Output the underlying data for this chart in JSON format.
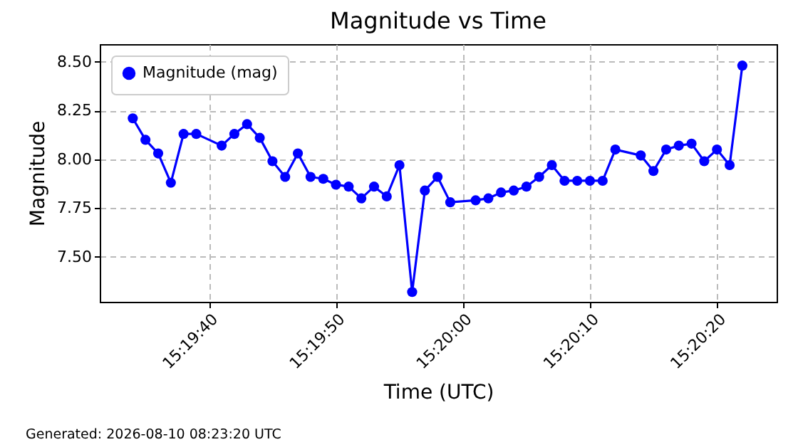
{
  "chart_data": {
    "type": "line",
    "title": "Magnitude vs Time",
    "xlabel": "Time (UTC)",
    "ylabel": "Magnitude",
    "annotations": [
      "Generated: 2026-08-10 08:23:20 UTC"
    ],
    "x": [
      "2026-08-10T15:19:34",
      "2026-08-10T15:19:35",
      "2026-08-10T15:19:36",
      "2026-08-10T15:19:37",
      "2026-08-10T15:19:38",
      "2026-08-10T15:19:39",
      "2026-08-10T15:19:41",
      "2026-08-10T15:19:42",
      "2026-08-10T15:19:43",
      "2026-08-10T15:19:44",
      "2026-08-10T15:19:45",
      "2026-08-10T15:19:46",
      "2026-08-10T15:19:47",
      "2026-08-10T15:19:48",
      "2026-08-10T15:19:49",
      "2026-08-10T15:19:50",
      "2026-08-10T15:19:51",
      "2026-08-10T15:19:52",
      "2026-08-10T15:19:53",
      "2026-08-10T15:19:54",
      "2026-08-10T15:19:55",
      "2026-08-10T15:19:56",
      "2026-08-10T15:19:57",
      "2026-08-10T15:19:58",
      "2026-08-10T15:19:59",
      "2026-08-10T15:20:01",
      "2026-08-10T15:20:02",
      "2026-08-10T15:20:03",
      "2026-08-10T15:20:04",
      "2026-08-10T15:20:05",
      "2026-08-10T15:20:06",
      "2026-08-10T15:20:07",
      "2026-08-10T15:20:08",
      "2026-08-10T15:20:09",
      "2026-08-10T15:20:10",
      "2026-08-10T15:20:11",
      "2026-08-10T15:20:12",
      "2026-08-10T15:20:14",
      "2026-08-10T15:20:15",
      "2026-08-10T15:20:16",
      "2026-08-10T15:20:17",
      "2026-08-10T15:20:18",
      "2026-08-10T15:20:19",
      "2026-08-10T15:20:20",
      "2026-08-10T15:20:21",
      "2026-08-10T15:20:22"
    ],
    "series": [
      {
        "name": "Magnitude (mag)",
        "color": "#0000ff",
        "values": [
          8.21,
          8.1,
          8.03,
          7.88,
          8.13,
          8.13,
          8.07,
          8.13,
          8.18,
          8.11,
          7.99,
          7.91,
          8.03,
          7.91,
          7.9,
          7.87,
          7.86,
          7.8,
          7.86,
          7.81,
          7.97,
          7.32,
          7.84,
          7.91,
          7.78,
          7.79,
          7.8,
          7.83,
          7.84,
          7.86,
          7.91,
          7.97,
          7.89,
          7.89,
          7.89,
          7.89,
          8.05,
          8.02,
          7.94,
          8.05,
          8.07,
          8.08,
          7.99,
          8.05,
          7.97,
          8.48
        ]
      }
    ],
    "xlim": [
      "2026-08-10T15:19:31.4",
      "2026-08-10T15:20:24.7"
    ],
    "xticks": [
      {
        "value": "2026-08-10T15:19:40",
        "label": "15:19:40"
      },
      {
        "value": "2026-08-10T15:19:50",
        "label": "15:19:50"
      },
      {
        "value": "2026-08-10T15:20:00",
        "label": "15:20:00"
      },
      {
        "value": "2026-08-10T15:20:10",
        "label": "15:20:10"
      },
      {
        "value": "2026-08-10T15:20:20",
        "label": "15:20:20"
      }
    ],
    "ylim": [
      7.27,
      8.59
    ],
    "yticks": [
      {
        "value": 7.5,
        "label": "7.50"
      },
      {
        "value": 7.75,
        "label": "7.75"
      },
      {
        "value": 8.0,
        "label": "8.00"
      },
      {
        "value": 8.25,
        "label": "8.25"
      },
      {
        "value": 8.5,
        "label": "8.50"
      }
    ],
    "grid": true,
    "legend": "top left",
    "marker": "circle",
    "line_style": "solid"
  }
}
